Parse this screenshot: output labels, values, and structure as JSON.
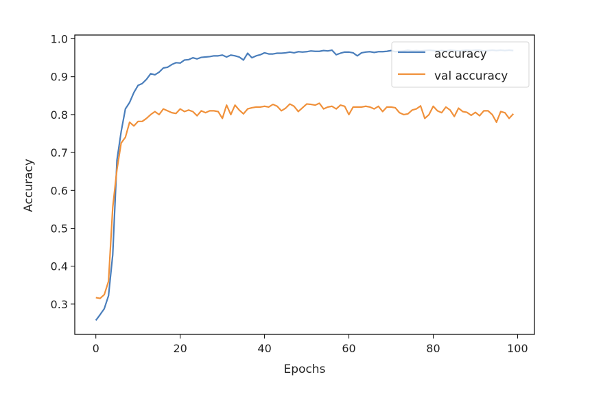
{
  "chart_data": {
    "type": "line",
    "xlabel": "Epochs",
    "ylabel": "Accuracy",
    "xlim": [
      -5,
      104
    ],
    "ylim": [
      0.22,
      1.01
    ],
    "x_ticks": [
      0,
      20,
      40,
      60,
      80,
      100
    ],
    "y_ticks": [
      0.3,
      0.4,
      0.5,
      0.6,
      0.7,
      0.8,
      0.9,
      1.0
    ],
    "x_tick_labels": [
      "0",
      "20",
      "40",
      "60",
      "80",
      "100"
    ],
    "y_tick_labels": [
      "0.3",
      "0.4",
      "0.5",
      "0.6",
      "0.7",
      "0.8",
      "0.9",
      "1.0"
    ],
    "legend_position": "top-right",
    "grid": false,
    "x": [
      0,
      1,
      2,
      3,
      4,
      5,
      6,
      7,
      8,
      9,
      10,
      11,
      12,
      13,
      14,
      15,
      16,
      17,
      18,
      19,
      20,
      21,
      22,
      23,
      24,
      25,
      26,
      27,
      28,
      29,
      30,
      31,
      32,
      33,
      34,
      35,
      36,
      37,
      38,
      39,
      40,
      41,
      42,
      43,
      44,
      45,
      46,
      47,
      48,
      49,
      50,
      51,
      52,
      53,
      54,
      55,
      56,
      57,
      58,
      59,
      60,
      61,
      62,
      63,
      64,
      65,
      66,
      67,
      68,
      69,
      70,
      71,
      72,
      73,
      74,
      75,
      76,
      77,
      78,
      79,
      80,
      81,
      82,
      83,
      84,
      85,
      86,
      87,
      88,
      89,
      90,
      91,
      92,
      93,
      94,
      95,
      96,
      97,
      98,
      99
    ],
    "series": [
      {
        "name": "accuracy",
        "color": "#4a7ebb",
        "values": [
          0.257,
          0.272,
          0.288,
          0.322,
          0.43,
          0.68,
          0.755,
          0.815,
          0.832,
          0.858,
          0.877,
          0.882,
          0.893,
          0.908,
          0.905,
          0.912,
          0.923,
          0.925,
          0.932,
          0.937,
          0.936,
          0.944,
          0.945,
          0.95,
          0.947,
          0.951,
          0.952,
          0.953,
          0.955,
          0.955,
          0.957,
          0.952,
          0.957,
          0.955,
          0.952,
          0.944,
          0.962,
          0.95,
          0.955,
          0.958,
          0.963,
          0.96,
          0.96,
          0.962,
          0.962,
          0.963,
          0.965,
          0.963,
          0.966,
          0.965,
          0.966,
          0.968,
          0.967,
          0.967,
          0.969,
          0.968,
          0.97,
          0.958,
          0.962,
          0.965,
          0.965,
          0.963,
          0.955,
          0.963,
          0.965,
          0.966,
          0.964,
          0.966,
          0.966,
          0.967,
          0.969,
          0.966,
          0.967,
          0.968,
          0.97,
          0.968,
          0.969,
          0.968,
          0.969,
          0.97,
          0.969,
          0.968,
          0.969,
          0.968,
          0.97,
          0.969,
          0.968,
          0.969,
          0.97,
          0.969,
          0.97,
          0.97,
          0.968,
          0.969,
          0.97,
          0.969,
          0.97,
          0.969,
          0.97,
          0.969
        ]
      },
      {
        "name": "val accuracy",
        "color": "#f0913b",
        "values": [
          0.317,
          0.315,
          0.325,
          0.36,
          0.555,
          0.655,
          0.725,
          0.74,
          0.78,
          0.77,
          0.782,
          0.782,
          0.79,
          0.8,
          0.808,
          0.8,
          0.815,
          0.81,
          0.805,
          0.803,
          0.815,
          0.808,
          0.812,
          0.808,
          0.797,
          0.81,
          0.805,
          0.81,
          0.81,
          0.808,
          0.79,
          0.825,
          0.8,
          0.825,
          0.812,
          0.802,
          0.815,
          0.818,
          0.82,
          0.82,
          0.822,
          0.82,
          0.827,
          0.822,
          0.81,
          0.817,
          0.828,
          0.822,
          0.808,
          0.818,
          0.828,
          0.827,
          0.825,
          0.83,
          0.815,
          0.82,
          0.822,
          0.815,
          0.825,
          0.822,
          0.8,
          0.82,
          0.82,
          0.82,
          0.822,
          0.82,
          0.815,
          0.822,
          0.808,
          0.82,
          0.82,
          0.818,
          0.805,
          0.8,
          0.802,
          0.812,
          0.815,
          0.823,
          0.79,
          0.8,
          0.822,
          0.81,
          0.805,
          0.82,
          0.812,
          0.795,
          0.817,
          0.808,
          0.806,
          0.798,
          0.806,
          0.797,
          0.81,
          0.81,
          0.8,
          0.78,
          0.808,
          0.805,
          0.79,
          0.802
        ]
      }
    ]
  }
}
